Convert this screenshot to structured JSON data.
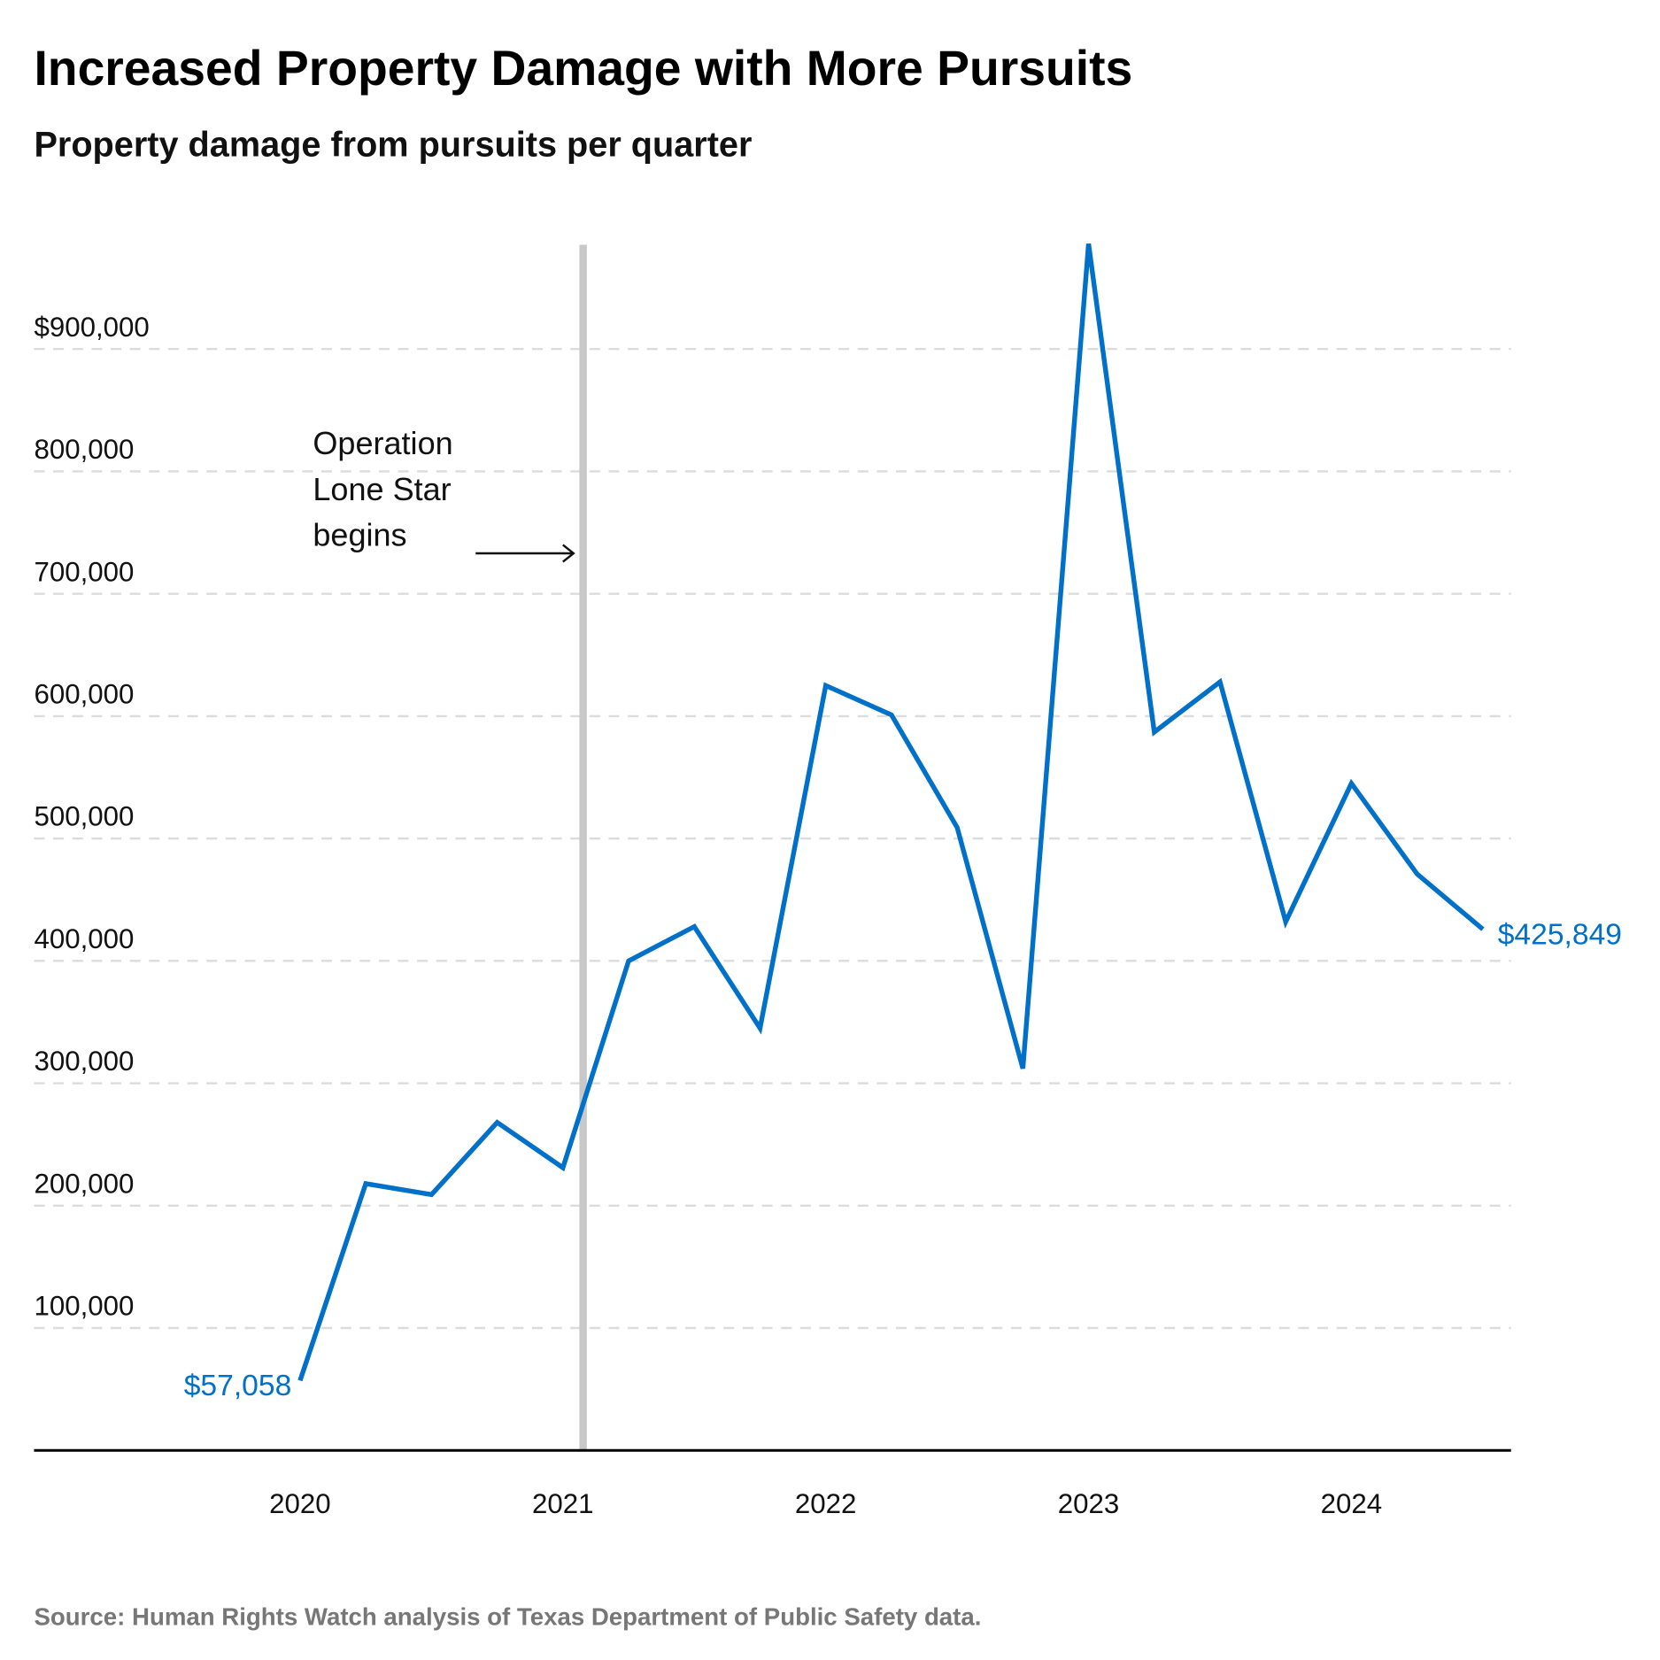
{
  "chart_data": {
    "type": "line",
    "title": "Increased Property Damage with More Pursuits",
    "subtitle": "Property damage from pursuits per quarter",
    "xlabel": "",
    "ylabel": "",
    "x": [
      "2020-Q1",
      "2020-Q2",
      "2020-Q3",
      "2020-Q4",
      "2021-Q1",
      "2021-Q2",
      "2021-Q3",
      "2021-Q4",
      "2022-Q1",
      "2022-Q2",
      "2022-Q3",
      "2022-Q4",
      "2023-Q1",
      "2023-Q2",
      "2023-Q3",
      "2023-Q4",
      "2024-Q1",
      "2024-Q2",
      "2024-Q3"
    ],
    "series": [
      {
        "values": [
          57058,
          218000,
          209000,
          268000,
          231000,
          400000,
          428000,
          345000,
          625000,
          601000,
          509000,
          312000,
          986000,
          587000,
          628000,
          432000,
          545000,
          471000,
          425849
        ],
        "color": "#0070c9"
      }
    ],
    "ylim": [
      0,
      900000
    ],
    "yticks": [
      100000,
      200000,
      300000,
      400000,
      500000,
      600000,
      700000,
      800000,
      900000
    ],
    "ytick_labels": [
      "100,000",
      "200,000",
      "300,000",
      "400,000",
      "500,000",
      "600,000",
      "700,000",
      "800,000",
      "$900,000"
    ],
    "xtick_labels": [
      "2020",
      "2021",
      "2022",
      "2023",
      "2024"
    ],
    "grid": "horizontal dashed",
    "data_labels": {
      "first": "$57,058",
      "last": "$425,849"
    },
    "annotation": {
      "lines": [
        "Operation",
        "Lone Star",
        "begins"
      ],
      "date": "2021-03",
      "line_color": "#c8c8c8"
    },
    "source_label": "Source:",
    "source_text": "Human Rights Watch analysis of Texas Department of Public Safety data."
  }
}
